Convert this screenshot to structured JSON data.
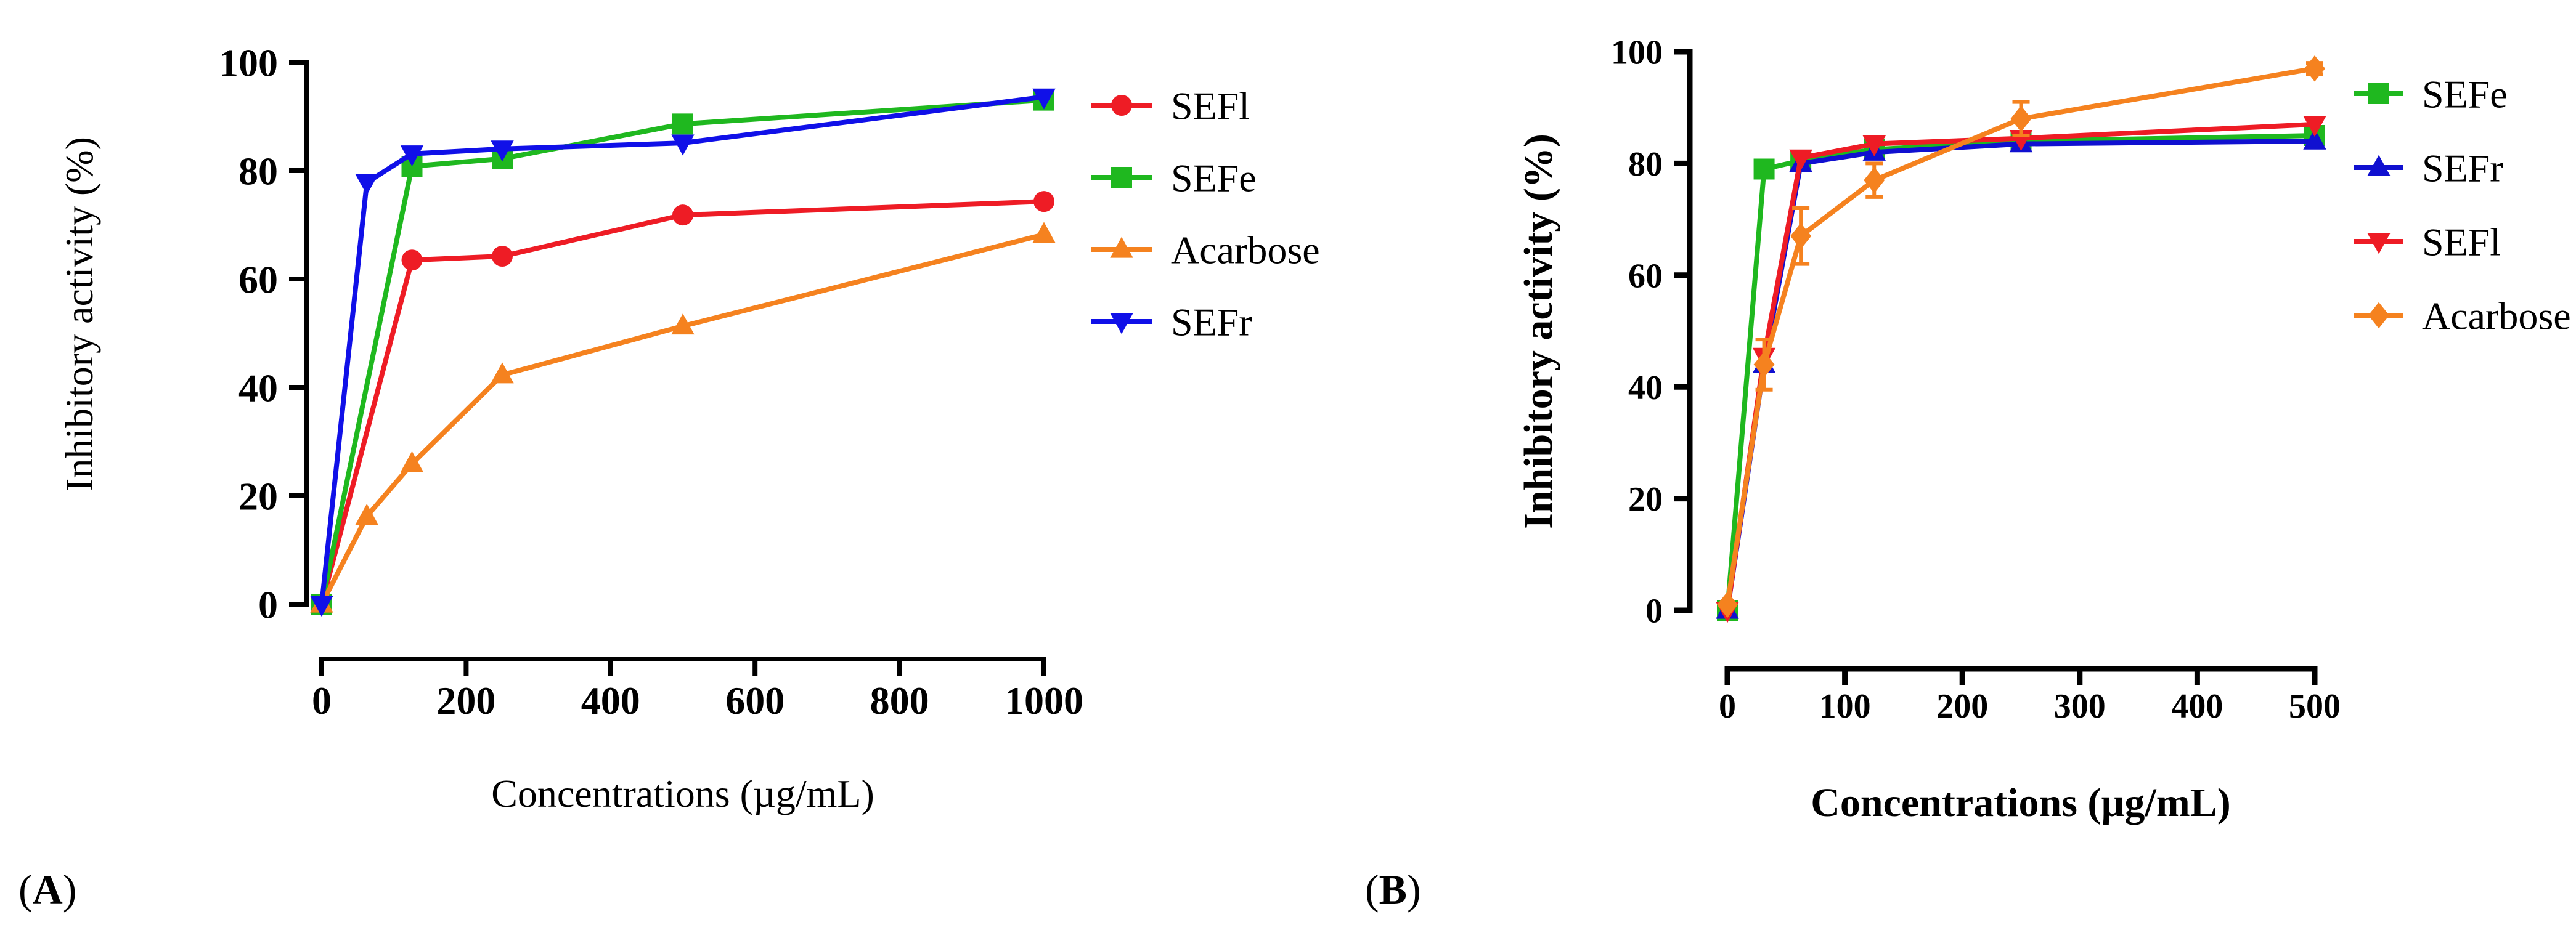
{
  "chart_data": [
    {
      "type": "line",
      "panel": "A",
      "title": "",
      "xlabel": "Concentrations (µg/mL)",
      "ylabel": "Inhibitory activity (%)",
      "xlim": [
        0,
        1000
      ],
      "ylim": [
        0,
        100
      ],
      "xticks": [
        0,
        200,
        400,
        600,
        800,
        1000
      ],
      "yticks": [
        0,
        20,
        40,
        60,
        80,
        100
      ],
      "legend_position": "right",
      "series": [
        {
          "name": "SEFl",
          "color": "#ee1c25",
          "marker": "circle",
          "x": [
            0,
            125,
            250,
            500,
            1000
          ],
          "y": [
            0,
            63.5,
            64.2,
            71.8,
            74.3
          ]
        },
        {
          "name": "SEFe",
          "color": "#1fb81f",
          "marker": "square",
          "x": [
            0,
            125,
            250,
            500,
            1000
          ],
          "y": [
            0,
            80.8,
            82.2,
            88.6,
            93.0
          ]
        },
        {
          "name": "Acarbose",
          "color": "#f5821f",
          "marker": "triangle-up",
          "x": [
            0,
            62.5,
            125,
            250,
            500,
            1000
          ],
          "y": [
            0,
            16.2,
            25.9,
            42.3,
            51.3,
            68.2
          ]
        },
        {
          "name": "SEFr",
          "color": "#1010e8",
          "marker": "triangle-down",
          "x": [
            0,
            62.5,
            125,
            250,
            500,
            1000
          ],
          "y": [
            0,
            77.8,
            83.1,
            84.0,
            85.1,
            93.6
          ]
        }
      ]
    },
    {
      "type": "line",
      "panel": "B",
      "title": "",
      "xlabel": "Concentrations (µg/mL)",
      "ylabel": "Inhibitory activity (%)",
      "xlim": [
        0,
        500
      ],
      "ylim": [
        0,
        100
      ],
      "xticks": [
        0,
        100,
        200,
        300,
        400,
        500
      ],
      "yticks": [
        0,
        20,
        40,
        60,
        80,
        100
      ],
      "legend_position": "right",
      "series": [
        {
          "name": "SEFe",
          "color": "#1fb81f",
          "marker": "square",
          "x": [
            0,
            31.25,
            62.5,
            125,
            250,
            500
          ],
          "y": [
            0,
            79.0,
            80.5,
            82.5,
            84.0,
            85.0
          ]
        },
        {
          "name": "SEFr",
          "color": "#1010d0",
          "marker": "triangle-up",
          "x": [
            0,
            31.25,
            62.5,
            125,
            250,
            500
          ],
          "y": [
            0,
            44.0,
            80.0,
            82.0,
            83.5,
            84.0
          ]
        },
        {
          "name": "SEFl",
          "color": "#ee1c25",
          "marker": "triangle-down",
          "x": [
            0,
            31.25,
            62.5,
            125,
            250,
            500
          ],
          "y": [
            0,
            45.5,
            81.0,
            83.5,
            84.5,
            87.0
          ]
        },
        {
          "name": "Acarbose",
          "color": "#f5821f",
          "marker": "diamond",
          "x": [
            0,
            31.25,
            62.5,
            125,
            250,
            500
          ],
          "y": [
            1.0,
            44.0,
            67.0,
            77.0,
            88.0,
            97.0
          ],
          "err": [
            0,
            4.5,
            5.0,
            3.0,
            3.0,
            1.0
          ]
        }
      ]
    }
  ],
  "labels": {
    "panel_a_paren_open": "(",
    "panel_a": "A",
    "panel_a_paren_close": ")",
    "panel_b_paren_open": "(",
    "panel_b": "B",
    "panel_b_paren_close": ")"
  }
}
